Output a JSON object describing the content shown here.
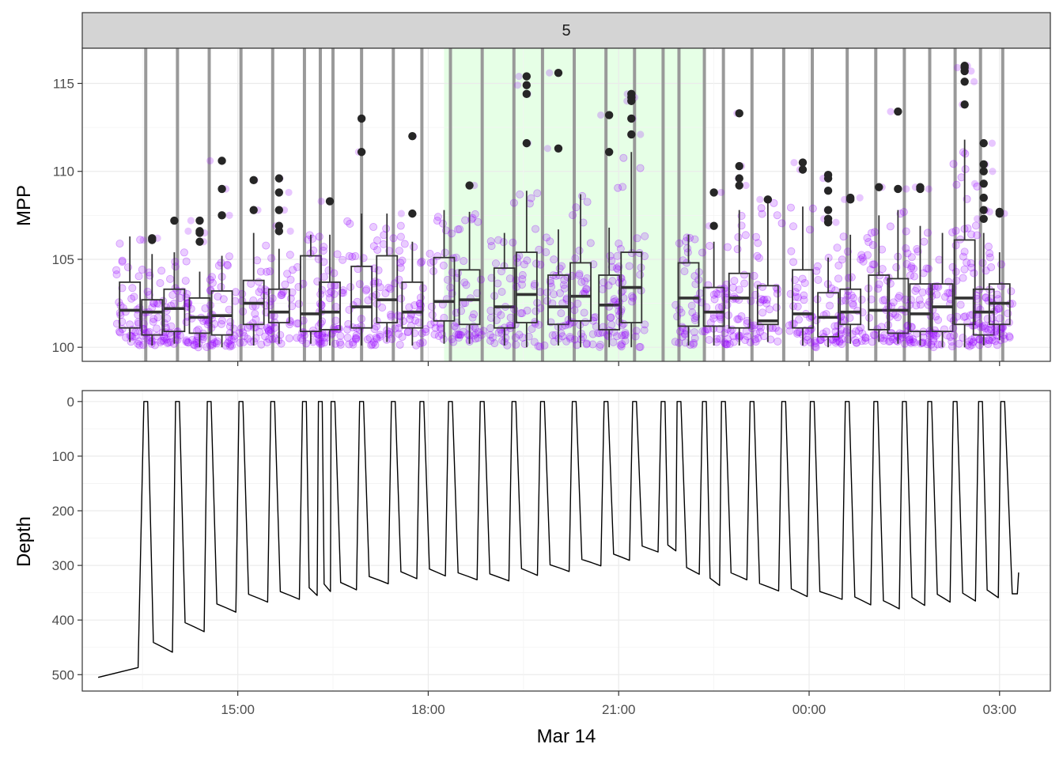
{
  "facet_label": "5",
  "x_axis_title": "Mar 14",
  "x_ticks": [
    "15:00",
    "18:00",
    "21:00",
    "00:00",
    "03:00"
  ],
  "chart_data": [
    {
      "type": "boxplot",
      "ylabel": "MPP",
      "ylim": [
        99.2,
        117
      ],
      "y_ticks": [
        100,
        105,
        110,
        115
      ],
      "grid": true,
      "point_color": "#9400FF",
      "shade_color": "#E6FFE6",
      "shaded_intervals_hours": [
        [
          18.25,
          22.33
        ]
      ],
      "dive_separator_hours": [
        13.55,
        14.05,
        14.55,
        15.05,
        15.55,
        16.05,
        16.3,
        16.5,
        16.95,
        17.45,
        17.9,
        18.35,
        18.85,
        19.35,
        19.8,
        20.3,
        20.8,
        21.25,
        21.7,
        21.95,
        22.35,
        22.65,
        23.1,
        23.6,
        24.05,
        24.6,
        25.05,
        25.5,
        25.9,
        26.3,
        26.7,
        27.05
      ],
      "boxes": [
        {
          "x": 13.3,
          "q1": 101.1,
          "median": 102.1,
          "q3": 103.7,
          "low": 100.3,
          "high": 106.3,
          "outliers": []
        },
        {
          "x": 13.65,
          "q1": 100.7,
          "median": 102.0,
          "q3": 102.7,
          "low": 100.1,
          "high": 105.3,
          "outliers": [
            106.1,
            106.2
          ]
        },
        {
          "x": 14.0,
          "q1": 100.9,
          "median": 102.2,
          "q3": 103.3,
          "low": 100.2,
          "high": 105.4,
          "outliers": [
            107.2
          ]
        },
        {
          "x": 14.4,
          "q1": 100.8,
          "median": 101.7,
          "q3": 102.8,
          "low": 100.0,
          "high": 104.3,
          "outliers": [
            106.0,
            106.5,
            106.6,
            107.2
          ]
        },
        {
          "x": 14.75,
          "q1": 100.7,
          "median": 101.8,
          "q3": 103.2,
          "low": 100.0,
          "high": 105.2,
          "outliers": [
            107.5,
            109.0,
            110.6
          ]
        },
        {
          "x": 15.25,
          "q1": 101.3,
          "median": 102.5,
          "q3": 103.8,
          "low": 100.1,
          "high": 106.5,
          "outliers": [
            107.8,
            109.5
          ]
        },
        {
          "x": 15.65,
          "q1": 101.4,
          "median": 102.0,
          "q3": 103.3,
          "low": 100.2,
          "high": 105.6,
          "outliers": [
            106.6,
            106.9,
            107.8,
            108.8,
            109.6
          ]
        },
        {
          "x": 16.15,
          "q1": 100.9,
          "median": 101.9,
          "q3": 105.2,
          "low": 100.2,
          "high": 106.4,
          "outliers": []
        },
        {
          "x": 16.45,
          "q1": 101.0,
          "median": 102.0,
          "q3": 103.7,
          "low": 100.1,
          "high": 106.4,
          "outliers": [
            108.3
          ]
        },
        {
          "x": 16.95,
          "q1": 101.1,
          "median": 102.3,
          "q3": 104.6,
          "low": 100.1,
          "high": 107.6,
          "outliers": [
            111.1,
            113.0
          ]
        },
        {
          "x": 17.35,
          "q1": 101.4,
          "median": 102.7,
          "q3": 105.2,
          "low": 100.3,
          "high": 107.6,
          "outliers": []
        },
        {
          "x": 17.75,
          "q1": 101.1,
          "median": 102.0,
          "q3": 103.7,
          "low": 100.1,
          "high": 106.0,
          "outliers": [
            107.6,
            112.0
          ]
        },
        {
          "x": 18.25,
          "q1": 101.5,
          "median": 102.6,
          "q3": 105.1,
          "low": 100.2,
          "high": 107.8,
          "outliers": []
        },
        {
          "x": 18.65,
          "q1": 101.3,
          "median": 102.7,
          "q3": 104.4,
          "low": 100.2,
          "high": 107.7,
          "outliers": [
            109.2
          ]
        },
        {
          "x": 19.2,
          "q1": 101.1,
          "median": 102.3,
          "q3": 104.5,
          "low": 100.1,
          "high": 106.5,
          "outliers": []
        },
        {
          "x": 19.55,
          "q1": 101.4,
          "median": 103.0,
          "q3": 105.4,
          "low": 100.0,
          "high": 108.9,
          "outliers": [
            111.6,
            114.4,
            114.9,
            115.4
          ]
        },
        {
          "x": 20.05,
          "q1": 101.3,
          "median": 102.3,
          "q3": 104.1,
          "low": 100.1,
          "high": 106.7,
          "outliers": [
            111.3,
            115.6
          ]
        },
        {
          "x": 20.4,
          "q1": 101.5,
          "median": 102.9,
          "q3": 104.8,
          "low": 100.0,
          "high": 108.7,
          "outliers": []
        },
        {
          "x": 20.85,
          "q1": 101.0,
          "median": 102.4,
          "q3": 104.1,
          "low": 100.0,
          "high": 106.8,
          "outliers": [
            111.1,
            113.2
          ]
        },
        {
          "x": 21.2,
          "q1": 101.4,
          "median": 103.4,
          "q3": 105.4,
          "low": 100.0,
          "high": 111.1,
          "outliers": [
            112.1,
            113.0,
            114.0,
            114.2,
            114.4
          ]
        },
        {
          "x": 22.1,
          "q1": 101.2,
          "median": 102.8,
          "q3": 104.8,
          "low": 100.1,
          "high": 106.4,
          "outliers": []
        },
        {
          "x": 22.5,
          "q1": 101.2,
          "median": 102.0,
          "q3": 103.4,
          "low": 100.1,
          "high": 106.0,
          "outliers": [
            106.9,
            108.8
          ]
        },
        {
          "x": 22.9,
          "q1": 101.1,
          "median": 102.8,
          "q3": 104.2,
          "low": 100.1,
          "high": 107.8,
          "outliers": [
            109.2,
            109.6,
            110.3,
            113.3
          ]
        },
        {
          "x": 23.35,
          "q1": 101.3,
          "median": 101.5,
          "q3": 103.5,
          "low": 100.3,
          "high": 108.2,
          "outliers": [
            108.4
          ]
        },
        {
          "x": 23.9,
          "q1": 101.1,
          "median": 101.9,
          "q3": 104.4,
          "low": 100.1,
          "high": 108.0,
          "outliers": [
            110.5,
            110.1
          ]
        },
        {
          "x": 24.3,
          "q1": 100.6,
          "median": 101.7,
          "q3": 103.1,
          "low": 100.0,
          "high": 105.1,
          "outliers": [
            107.1,
            107.3,
            107.8,
            108.9,
            109.6,
            109.8
          ]
        },
        {
          "x": 24.65,
          "q1": 101.3,
          "median": 102.0,
          "q3": 103.3,
          "low": 100.2,
          "high": 106.4,
          "outliers": [
            108.4,
            108.5
          ]
        },
        {
          "x": 25.1,
          "q1": 101.0,
          "median": 102.1,
          "q3": 104.1,
          "low": 100.3,
          "high": 107.5,
          "outliers": [
            109.1
          ]
        },
        {
          "x": 25.4,
          "q1": 100.8,
          "median": 102.1,
          "q3": 103.9,
          "low": 100.2,
          "high": 107.8,
          "outliers": [
            109.0,
            113.4
          ]
        },
        {
          "x": 25.75,
          "q1": 100.9,
          "median": 101.9,
          "q3": 103.6,
          "low": 100.1,
          "high": 106.9,
          "outliers": [
            109.0,
            109.1
          ]
        },
        {
          "x": 26.1,
          "q1": 100.9,
          "median": 102.3,
          "q3": 103.6,
          "low": 100.0,
          "high": 106.5,
          "outliers": []
        },
        {
          "x": 26.45,
          "q1": 101.3,
          "median": 102.8,
          "q3": 106.1,
          "low": 100.0,
          "high": 111.8,
          "outliers": [
            113.8,
            115.1,
            115.7,
            115.9,
            116.0
          ]
        },
        {
          "x": 26.75,
          "q1": 100.7,
          "median": 102.0,
          "q3": 103.3,
          "low": 100.1,
          "high": 106.5,
          "outliers": [
            107.3,
            107.8,
            108.5,
            109.3,
            110.0,
            110.4,
            111.6
          ]
        },
        {
          "x": 27.0,
          "q1": 101.3,
          "median": 102.5,
          "q3": 103.6,
          "low": 100.4,
          "high": 105.4,
          "outliers": [
            107.6,
            107.7
          ]
        }
      ]
    },
    {
      "type": "line",
      "ylabel": "Depth",
      "y_reversed": true,
      "ylim": [
        -20,
        530
      ],
      "y_ticks": [
        0,
        100,
        200,
        300,
        400,
        500
      ],
      "grid": true,
      "line_color": "#000000",
      "surface_hours": [
        13.55,
        14.05,
        14.55,
        15.05,
        15.55,
        16.05,
        16.3,
        16.5,
        16.95,
        17.45,
        17.9,
        18.35,
        18.85,
        19.35,
        19.8,
        20.3,
        20.8,
        21.25,
        21.7,
        21.95,
        22.35,
        22.65,
        23.1,
        23.6,
        24.05,
        24.6,
        25.05,
        25.5,
        25.9,
        26.3,
        26.7,
        27.05
      ],
      "bottom_depths": [
        487,
        450,
        413,
        378,
        360,
        355,
        348,
        341,
        338,
        327,
        318,
        313,
        320,
        322,
        312,
        305,
        295,
        285,
        270,
        268,
        310,
        330,
        320,
        340,
        350,
        355,
        365,
        372,
        366,
        360,
        358,
        352
      ],
      "start": {
        "hour": 12.8,
        "depth": 505
      },
      "end": {
        "hour": 27.3,
        "depth": 313
      }
    }
  ]
}
